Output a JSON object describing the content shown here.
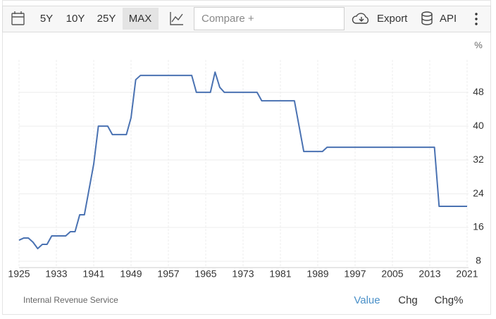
{
  "toolbar": {
    "ranges": [
      "5Y",
      "10Y",
      "25Y",
      "MAX"
    ],
    "compare": "Compare +",
    "export": "Export",
    "api": "API"
  },
  "chart_data": {
    "type": "line",
    "y_unit": "%",
    "source": "Internal Revenue Service",
    "color": "#4a72b2",
    "grid": true,
    "x": [
      1925,
      1926,
      1927,
      1928,
      1929,
      1930,
      1931,
      1932,
      1933,
      1934,
      1935,
      1936,
      1937,
      1938,
      1939,
      1940,
      1941,
      1942,
      1943,
      1944,
      1945,
      1946,
      1947,
      1948,
      1949,
      1950,
      1951,
      1952,
      1953,
      1954,
      1955,
      1956,
      1957,
      1958,
      1959,
      1960,
      1961,
      1962,
      1963,
      1964,
      1965,
      1966,
      1967,
      1968,
      1969,
      1970,
      1971,
      1972,
      1973,
      1974,
      1975,
      1976,
      1977,
      1978,
      1979,
      1980,
      1981,
      1982,
      1983,
      1984,
      1985,
      1986,
      1987,
      1988,
      1989,
      1990,
      1991,
      1992,
      1993,
      1994,
      1995,
      1996,
      1997,
      1998,
      1999,
      2000,
      2001,
      2002,
      2003,
      2004,
      2005,
      2006,
      2007,
      2008,
      2009,
      2010,
      2011,
      2012,
      2013,
      2014,
      2015,
      2016,
      2017,
      2018,
      2019,
      2020,
      2021
    ],
    "values": [
      13,
      13.5,
      13.5,
      12.5,
      11,
      12,
      12,
      14,
      14,
      14,
      14,
      15,
      15,
      19,
      19,
      25,
      31,
      40,
      40,
      40,
      38,
      38,
      38,
      38,
      42,
      51,
      52,
      52,
      52,
      52,
      52,
      52,
      52,
      52,
      52,
      52,
      52,
      52,
      48,
      48,
      48,
      48,
      52.8,
      49.2,
      48,
      48,
      48,
      48,
      48,
      48,
      48,
      48,
      46,
      46,
      46,
      46,
      46,
      46,
      46,
      46,
      40,
      34,
      34,
      34,
      34,
      34,
      35,
      35,
      35,
      35,
      35,
      35,
      35,
      35,
      35,
      35,
      35,
      35,
      35,
      35,
      35,
      35,
      35,
      35,
      35,
      35,
      35,
      35,
      35,
      35,
      21,
      21,
      21,
      21,
      21,
      21,
      21
    ],
    "xlim": [
      1925,
      2021.3
    ],
    "ylim": [
      6.5,
      55.7
    ],
    "xticks": [
      1925,
      1933,
      1941,
      1949,
      1957,
      1965,
      1973,
      1981,
      1989,
      1997,
      2005,
      2013,
      2021
    ],
    "yticks": [
      8,
      16,
      24,
      32,
      40,
      48
    ]
  },
  "footer_tabs": [
    "Value",
    "Chg",
    "Chg%"
  ]
}
